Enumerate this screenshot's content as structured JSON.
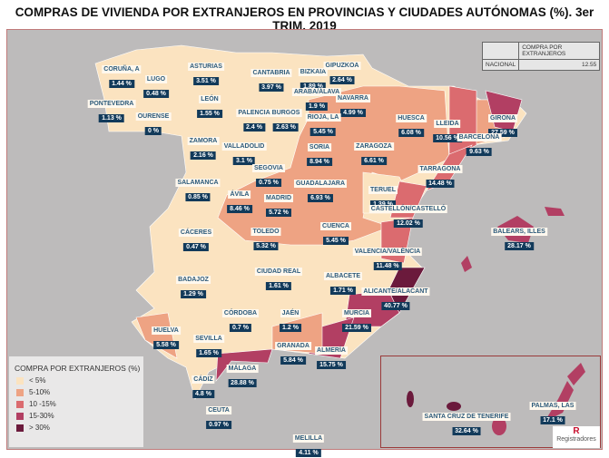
{
  "title": "COMPRAS DE VIVIENDA POR EXTRANJEROS EN PROVINCIAS Y CIUDADES AUTÓNOMAS (%). 3er TRIM. 2019",
  "national_table": {
    "header": "COMPRA POR EXTRANJEROS",
    "row_label": "NACIONAL",
    "value": "12.55"
  },
  "legend": {
    "title": "COMPRA POR EXTRANJEROS (%)",
    "items": [
      {
        "label": "< 5%",
        "color": "#fbe3c0"
      },
      {
        "label": "5-10%",
        "color": "#eea383"
      },
      {
        "label": "10 -15%",
        "color": "#db6b6f"
      },
      {
        "label": "15-30%",
        "color": "#b23f63"
      },
      {
        "label": "> 30%",
        "color": "#6b1a3c"
      }
    ]
  },
  "logo": "Registradores",
  "provinces": [
    {
      "name": "CORUÑA, A",
      "value": "1.44 %"
    },
    {
      "name": "LUGO",
      "value": "0.48 %"
    },
    {
      "name": "ASTURIAS",
      "value": "3.51 %"
    },
    {
      "name": "CANTABRIA",
      "value": "3.97 %"
    },
    {
      "name": "BIZKAIA",
      "value": "1.89 %"
    },
    {
      "name": "GIPUZKOA",
      "value": "2.64 %"
    },
    {
      "name": "ARABA/ÁLAVA",
      "value": "1.9 %"
    },
    {
      "name": "NAVARRA",
      "value": "4.99 %"
    },
    {
      "name": "PONTEVEDRA",
      "value": "1.13 %"
    },
    {
      "name": "OURENSE",
      "value": "0 %"
    },
    {
      "name": "LEÓN",
      "value": "1.55 %"
    },
    {
      "name": "PALENCIA",
      "value": "2.4 %"
    },
    {
      "name": "BURGOS",
      "value": "2.63 %"
    },
    {
      "name": "RIOJA, LA",
      "value": "5.45 %"
    },
    {
      "name": "HUESCA",
      "value": "6.08 %"
    },
    {
      "name": "LLEIDA",
      "value": "10.56 %"
    },
    {
      "name": "GIRONA",
      "value": "27.59 %"
    },
    {
      "name": "BARCELONA",
      "value": "9.63 %"
    },
    {
      "name": "SORIA",
      "value": "8.94 %"
    },
    {
      "name": "ZARAGOZA",
      "value": "6.61 %"
    },
    {
      "name": "ZAMORA",
      "value": "2.16 %"
    },
    {
      "name": "VALLADOLID",
      "value": "3.1 %"
    },
    {
      "name": "SEGOVIA",
      "value": "0.75 %"
    },
    {
      "name": "SALAMANCA",
      "value": "0.85 %"
    },
    {
      "name": "ÁVILA",
      "value": "8.46 %"
    },
    {
      "name": "MADRID",
      "value": "5.72 %"
    },
    {
      "name": "GUADALAJARA",
      "value": "6.93 %"
    },
    {
      "name": "TERUEL",
      "value": "1.39 %"
    },
    {
      "name": "TARRAGONA",
      "value": "14.48 %"
    },
    {
      "name": "CASTELLÓN/CASTELLÓ",
      "value": "12.02 %"
    },
    {
      "name": "CUENCA",
      "value": "5.45 %"
    },
    {
      "name": "TOLEDO",
      "value": "5.32 %"
    },
    {
      "name": "CÁCERES",
      "value": "0.47 %"
    },
    {
      "name": "BALEARS, ILLES",
      "value": "28.17 %"
    },
    {
      "name": "VALENCIA/VALÈNCIA",
      "value": "11.48 %"
    },
    {
      "name": "BADAJOZ",
      "value": "1.29 %"
    },
    {
      "name": "CIUDAD REAL",
      "value": "1.61 %"
    },
    {
      "name": "ALBACETE",
      "value": "1.71 %"
    },
    {
      "name": "ALICANTE/ALACANT",
      "value": "40.77 %"
    },
    {
      "name": "CÓRDOBA",
      "value": "0.7 %"
    },
    {
      "name": "JAÉN",
      "value": "1.2 %"
    },
    {
      "name": "MURCIA",
      "value": "21.59 %"
    },
    {
      "name": "HUELVA",
      "value": "5.58 %"
    },
    {
      "name": "SEVILLA",
      "value": "1.65 %"
    },
    {
      "name": "GRANADA",
      "value": "5.84 %"
    },
    {
      "name": "ALMERÍA",
      "value": "15.75 %"
    },
    {
      "name": "MÁLAGA",
      "value": "28.88 %"
    },
    {
      "name": "CÁDIZ",
      "value": "4.8 %"
    },
    {
      "name": "CEUTA",
      "value": "0.97 %"
    },
    {
      "name": "MELILLA",
      "value": "4.11 %"
    },
    {
      "name": "SANTA CRUZ DE TENERIFE",
      "value": "32.64 %"
    },
    {
      "name": "PALMAS, LAS",
      "value": "17.1 %"
    }
  ]
}
